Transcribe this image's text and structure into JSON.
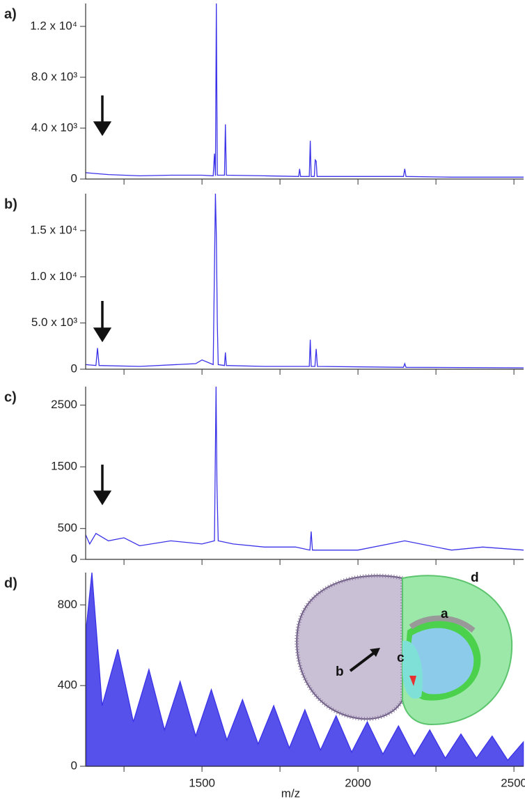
{
  "chart_data": [
    {
      "type": "line",
      "panel_label": "a)",
      "xlim": [
        1127,
        2531
      ],
      "ylim": [
        0,
        13800
      ],
      "xticks": [
        1250,
        1500,
        1750,
        2000,
        2250,
        2500
      ],
      "xtick_labels": false,
      "yticks": [
        0,
        {
          "value": 4000,
          "label": "4.0 x 10³"
        },
        {
          "value": 8000,
          "label": "8.0 x 10³"
        },
        {
          "value": 12000,
          "label": "1.2 x 10⁴"
        }
      ],
      "x": [
        1127,
        1200,
        1300,
        1400,
        1500,
        1536,
        1540,
        1543,
        1546,
        1549,
        1572,
        1575,
        1578,
        1700,
        1810,
        1813,
        1816,
        1844,
        1847,
        1850,
        1860,
        1863,
        1866,
        1869,
        2000,
        2146,
        2150,
        2154,
        2300,
        2531
      ],
      "series": [
        {
          "color": "#3a32e8",
          "values": [
            500,
            350,
            250,
            300,
            300,
            250,
            2000,
            250,
            13800,
            300,
            300,
            4300,
            300,
            250,
            200,
            800,
            200,
            200,
            3000,
            200,
            200,
            1500,
            1400,
            200,
            200,
            200,
            800,
            200,
            150,
            150
          ]
        }
      ]
    },
    {
      "type": "line",
      "panel_label": "b)",
      "xlim": [
        1127,
        2531
      ],
      "ylim": [
        0,
        19000
      ],
      "xticks": [
        1250,
        1500,
        1750,
        2000,
        2250,
        2500
      ],
      "xtick_labels": false,
      "yticks": [
        0,
        {
          "value": 5000,
          "label": "5.0 x 10³"
        },
        {
          "value": 10000,
          "label": "1.0 x 10⁴"
        },
        {
          "value": 15000,
          "label": "1.5 x 10⁴"
        }
      ],
      "x": [
        1127,
        1160,
        1165,
        1170,
        1300,
        1480,
        1500,
        1536,
        1543,
        1546,
        1549,
        1552,
        1572,
        1575,
        1578,
        1700,
        1844,
        1847,
        1850,
        1862,
        1866,
        1870,
        2146,
        2150,
        2154,
        2531
      ],
      "series": [
        {
          "color": "#3a32e8",
          "values": [
            500,
            400,
            2300,
            400,
            300,
            600,
            1000,
            500,
            19000,
            14500,
            5000,
            500,
            400,
            1800,
            400,
            300,
            300,
            3200,
            300,
            300,
            2200,
            300,
            200,
            600,
            200,
            150
          ]
        }
      ]
    },
    {
      "type": "line",
      "panel_label": "c)",
      "xlim": [
        1127,
        2531
      ],
      "ylim": [
        0,
        2800
      ],
      "xticks": [
        1250,
        1500,
        1750,
        2000,
        2250,
        2500
      ],
      "xtick_labels": false,
      "yticks": [
        0,
        500,
        1500,
        2500
      ],
      "x": [
        1127,
        1140,
        1160,
        1200,
        1250,
        1300,
        1400,
        1500,
        1540,
        1545,
        1548,
        1552,
        1600,
        1700,
        1800,
        1846,
        1850,
        1854,
        2000,
        2150,
        2300,
        2400,
        2531
      ],
      "series": [
        {
          "color": "#3a32e8",
          "values": [
            400,
            250,
            420,
            300,
            350,
            220,
            300,
            250,
            300,
            2800,
            1200,
            300,
            250,
            200,
            200,
            150,
            450,
            150,
            150,
            300,
            150,
            200,
            150
          ]
        }
      ]
    },
    {
      "type": "area",
      "panel_label": "d)",
      "xlabel": "m/z",
      "xlim": [
        1127,
        2531
      ],
      "ylim": [
        0,
        960
      ],
      "xticks": [
        1500,
        2000,
        2500
      ],
      "xtick_labels": true,
      "minor_xticks": [
        1250,
        1750,
        2250
      ],
      "yticks": [
        0,
        400,
        800
      ],
      "inset_labels": [
        "a",
        "b",
        "c",
        "d"
      ],
      "x": [
        1130,
        1147,
        1180,
        1230,
        1280,
        1330,
        1380,
        1430,
        1480,
        1530,
        1580,
        1630,
        1680,
        1730,
        1780,
        1830,
        1880,
        1930,
        1980,
        2030,
        2080,
        2130,
        2180,
        2230,
        2280,
        2330,
        2380,
        2430,
        2480,
        2530
      ],
      "series": [
        {
          "color": "#3a32e8",
          "values": [
            700,
            960,
            300,
            580,
            220,
            480,
            180,
            420,
            150,
            380,
            130,
            330,
            110,
            300,
            90,
            280,
            80,
            250,
            70,
            220,
            60,
            200,
            50,
            180,
            40,
            160,
            40,
            150,
            30,
            120
          ]
        }
      ]
    }
  ]
}
